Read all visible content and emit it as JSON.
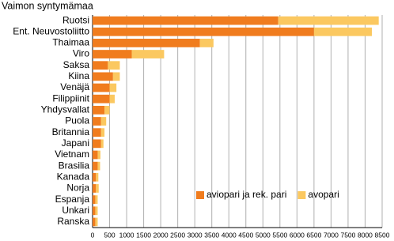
{
  "chart_data": {
    "type": "stacked-barh",
    "title": "Vaimon syntymämaa",
    "categories": [
      "Ruotsi",
      "Ent. Neuvostoliitto",
      "Thaimaa",
      "Viro",
      "Saksa",
      "Kiina",
      "Venäjä",
      "Filippiinit",
      "Yhdysvallat",
      "Puola",
      "Britannia",
      "Japani",
      "Vietnam",
      "Brasilia",
      "Kanada",
      "Norja",
      "Espanja",
      "Unkari",
      "Ranska"
    ],
    "series": [
      {
        "name": "aviopari ja rek. pari",
        "color": "#f07c1e",
        "values": [
          5450,
          6500,
          3150,
          1150,
          450,
          600,
          500,
          500,
          350,
          250,
          250,
          250,
          150,
          150,
          100,
          100,
          80,
          80,
          80
        ]
      },
      {
        "name": "avopari",
        "color": "#fbc860",
        "values": [
          2950,
          1700,
          400,
          950,
          350,
          200,
          200,
          150,
          150,
          150,
          100,
          70,
          80,
          70,
          70,
          80,
          70,
          70,
          70
        ]
      }
    ],
    "xlim": [
      0,
      8500
    ],
    "xticks": [
      0,
      500,
      1000,
      1500,
      2000,
      2500,
      3000,
      3500,
      4000,
      4500,
      5000,
      5500,
      6000,
      6500,
      7000,
      7500,
      8000,
      8500
    ],
    "grid": true,
    "legend": "lower right"
  }
}
